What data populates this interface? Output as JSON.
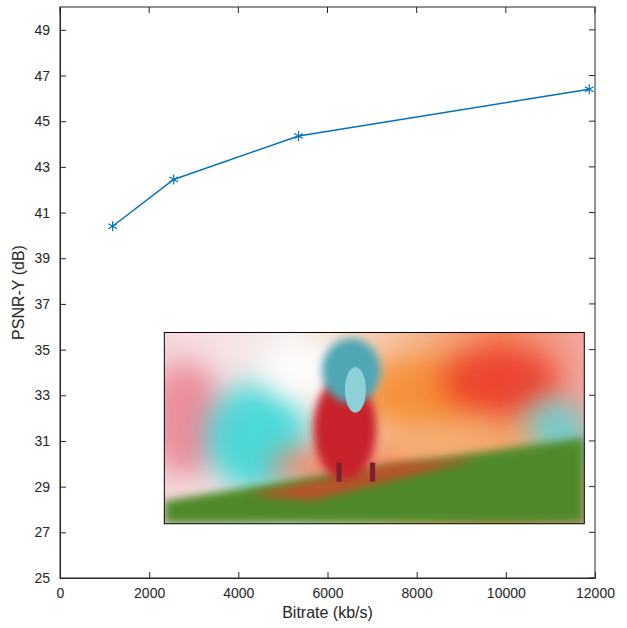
{
  "chart_data": {
    "type": "line",
    "x_label": "Bitrate (kb/s)",
    "y_label": "PSNR-Y (dB)",
    "x": [
      1180,
      2550,
      5350,
      11870
    ],
    "series": [
      {
        "color": "#0072bd",
        "marker": "asterisk",
        "line_style": "solid",
        "values": [
          40.4,
          42.45,
          44.35,
          46.4
        ]
      }
    ],
    "xlim": [
      0,
      12000
    ],
    "xticks": [
      0,
      2000,
      4000,
      6000,
      8000,
      10000,
      12000
    ],
    "ylim": [
      25,
      50
    ],
    "yticks": [
      25,
      27,
      29,
      31,
      33,
      35,
      37,
      39,
      41,
      43,
      45,
      47,
      49
    ],
    "grid": false
  }
}
